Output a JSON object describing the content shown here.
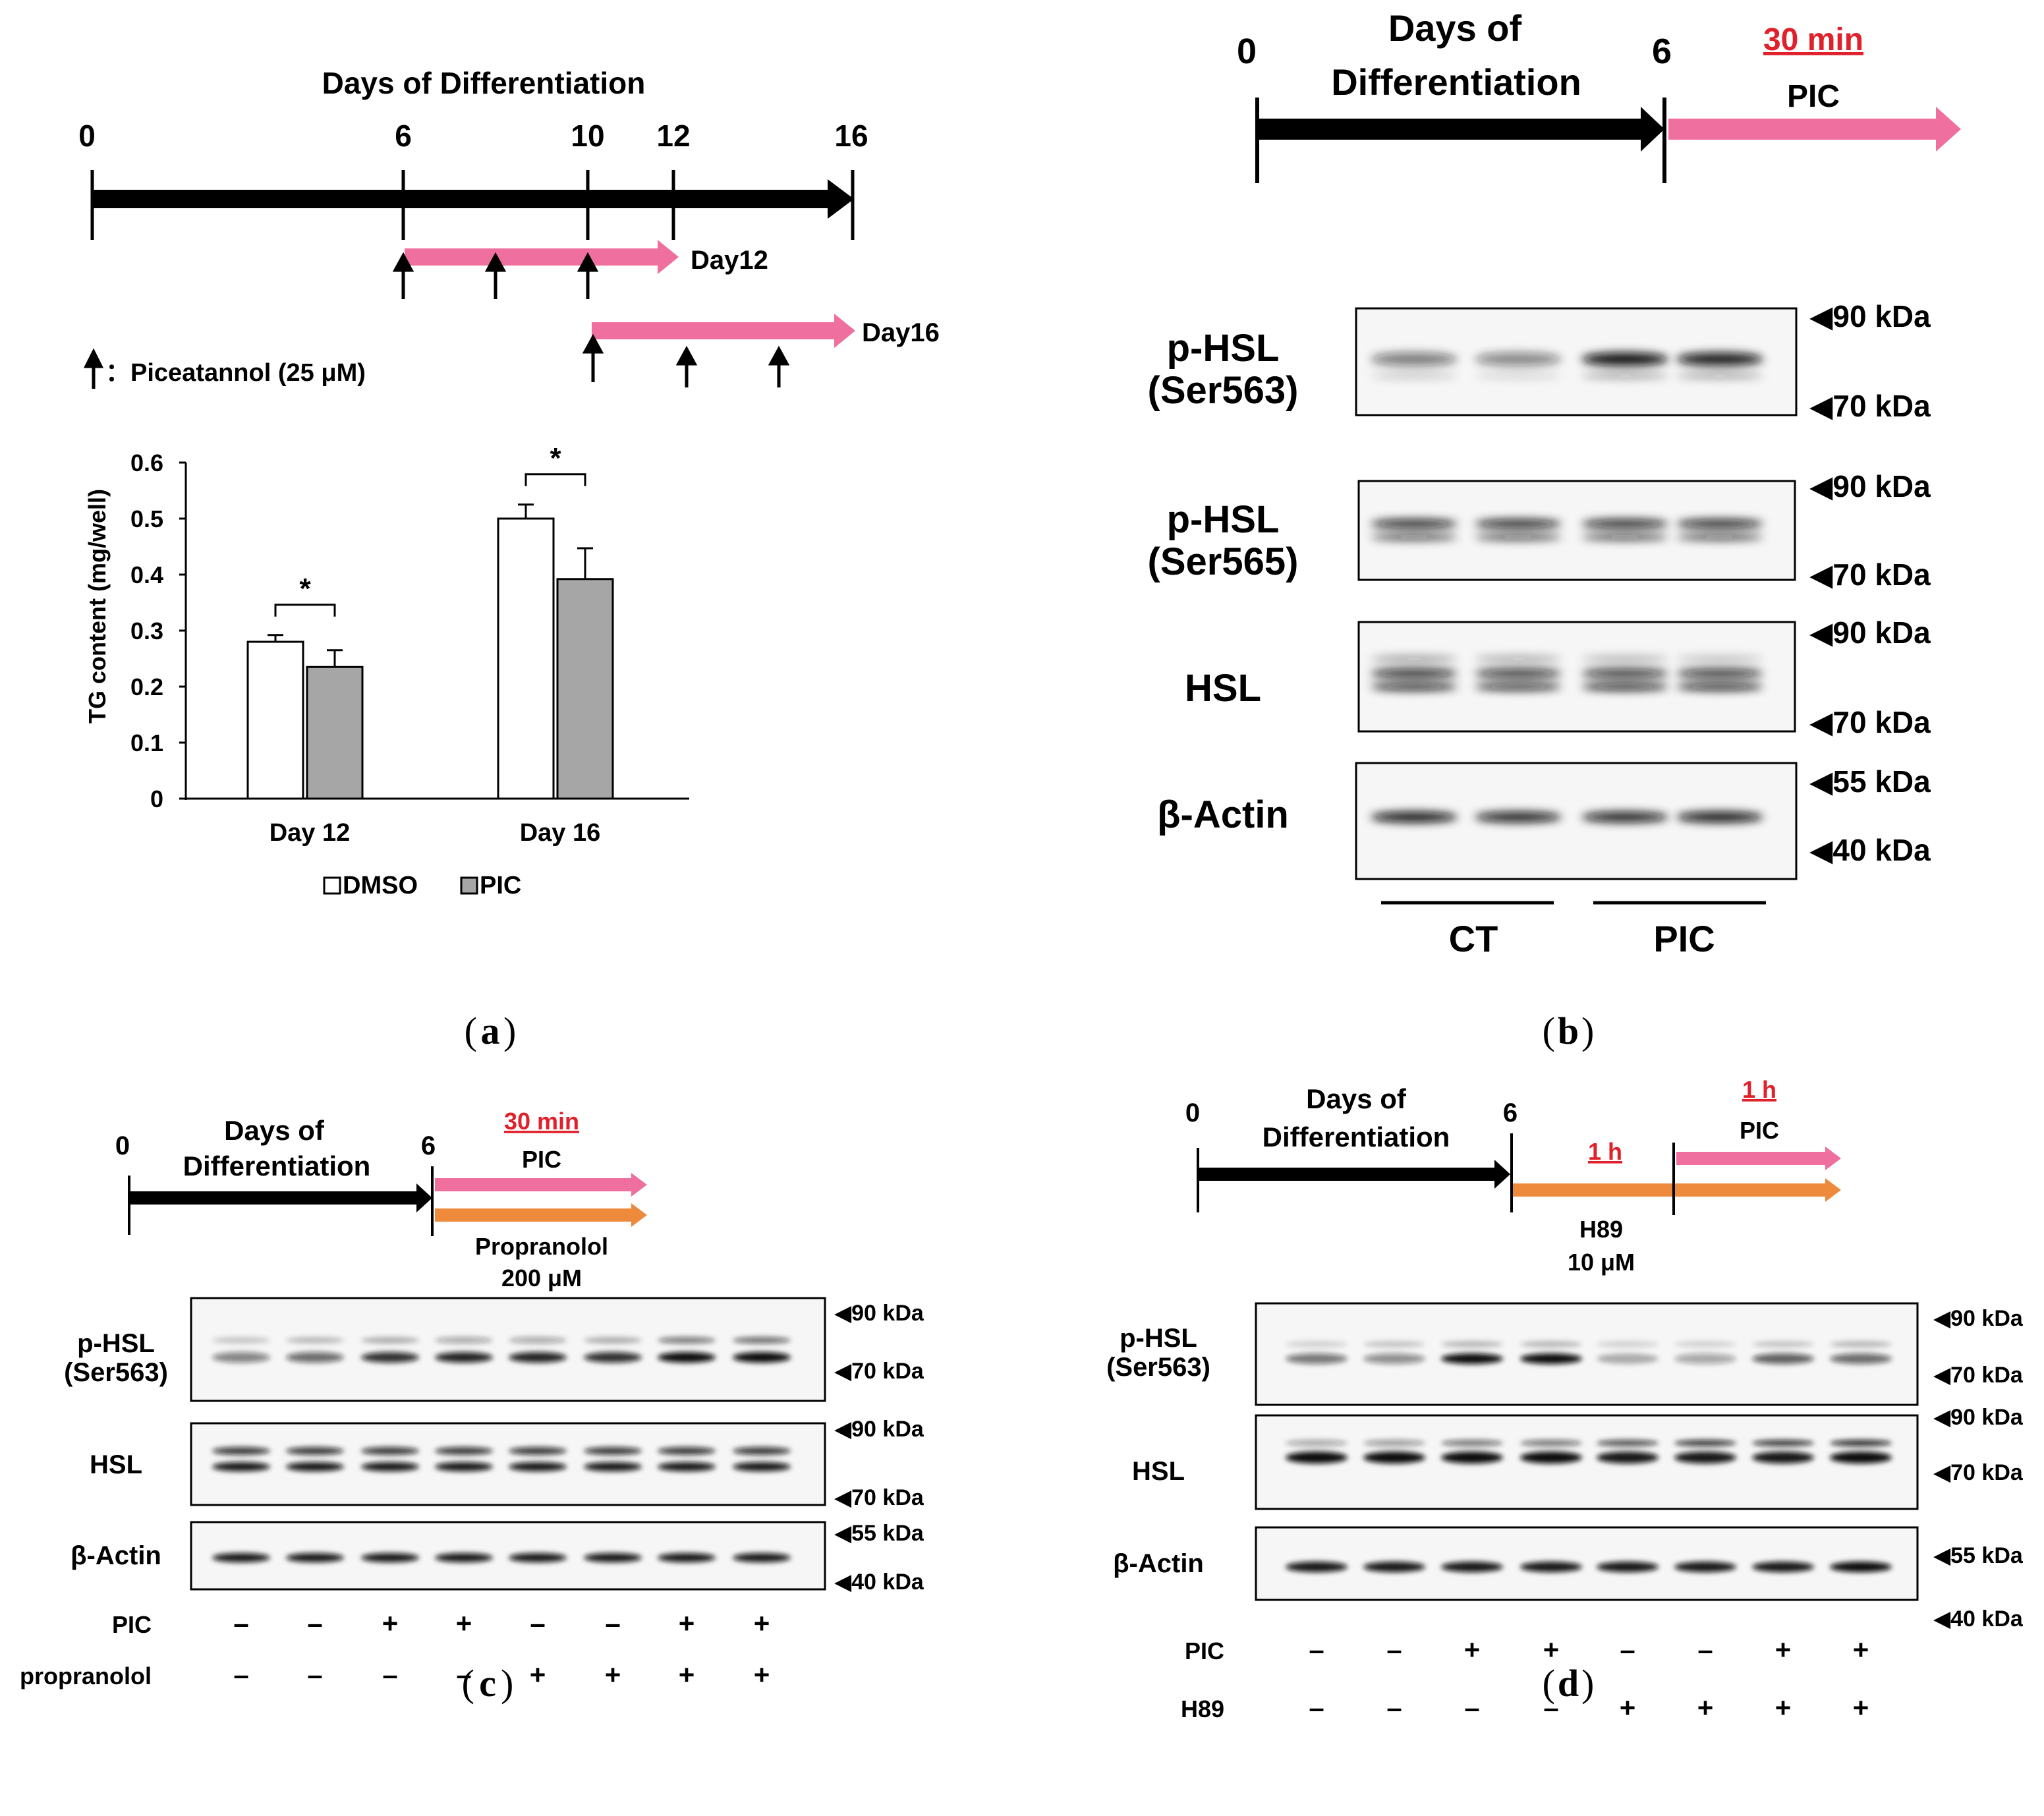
{
  "colors": {
    "pic": "#ef6f9e",
    "inhibitor": "#ee8a3c",
    "bar_dmso": "#ffffff",
    "bar_pic": "#a6a6a6",
    "band": "#111111",
    "timing": "#e0202a"
  },
  "panel_a": {
    "caption": "a",
    "timeline": {
      "title": "Days of Differentiation",
      "ticks": [
        "0",
        "6",
        "10",
        "12",
        "16"
      ],
      "arrow1_label": "Day12",
      "arrow2_label": "Day16",
      "legend_symbol": "↑",
      "legend_text": "：Piceatannol (25 μM)"
    },
    "chart_data": {
      "type": "bar",
      "categories": [
        "Day 12",
        "Day 16"
      ],
      "series": [
        {
          "name": "DMSO",
          "values": [
            0.28,
            0.5
          ],
          "errors": [
            0.012,
            0.025
          ]
        },
        {
          "name": "PIC",
          "values": [
            0.235,
            0.392
          ],
          "errors": [
            0.03,
            0.055
          ]
        }
      ],
      "ylabel": "TG content (mg/well)",
      "xlabel": "",
      "ylim": [
        0,
        0.6
      ],
      "yticks": [
        "0",
        "0.1",
        "0.2",
        "0.3",
        "0.4",
        "0.5",
        "0.6"
      ],
      "significance": [
        "*",
        "*"
      ],
      "legend_placement": "bottom"
    }
  },
  "panel_b": {
    "caption": "b",
    "timeline": {
      "start": "0",
      "title_line1": "Days of",
      "title_line2": "Differentiation",
      "day": "6",
      "duration": "30 min",
      "treatment": "PIC"
    },
    "blots": [
      {
        "label_line1": "p-HSL",
        "label_line2": "(Ser563)",
        "marker_top": "◀90 kDa",
        "marker_bottom": "◀70 kDa"
      },
      {
        "label_line1": "p-HSL",
        "label_line2": "(Ser565)",
        "marker_top": "◀90 kDa",
        "marker_bottom": "◀70 kDa"
      },
      {
        "label_line1": "HSL",
        "label_line2": "",
        "marker_top": "◀90 kDa",
        "marker_bottom": "◀70 kDa"
      },
      {
        "label_line1": "β-Actin",
        "label_line2": "",
        "marker_top": "◀55 kDa",
        "marker_bottom": "◀40 kDa"
      }
    ],
    "groups": [
      "CT",
      "PIC"
    ]
  },
  "panel_c": {
    "caption": "c",
    "timeline": {
      "start": "0",
      "title_line1": "Days of",
      "title_line2": "Differentiation",
      "day": "6",
      "duration": "30 min",
      "treatment1": "PIC",
      "treatment2_line1": "Propranolol",
      "treatment2_line2": "200 μM"
    },
    "blots": [
      {
        "label_line1": "p-HSL",
        "label_line2": "(Ser563)",
        "marker_top": "◀90 kDa",
        "marker_bottom": "◀70 kDa"
      },
      {
        "label_line1": "HSL",
        "label_line2": "",
        "marker_top": "◀90 kDa",
        "marker_bottom": "◀70 kDa"
      },
      {
        "label_line1": "β-Actin",
        "label_line2": "",
        "marker_top": "◀55 kDa",
        "marker_bottom": "◀40 kDa"
      }
    ],
    "rows": [
      {
        "label": "PIC",
        "signs": [
          "–",
          "–",
          "+",
          "+",
          "–",
          "–",
          "+",
          "+"
        ]
      },
      {
        "label": "propranolol",
        "signs": [
          "–",
          "–",
          "–",
          "–",
          "+",
          "+",
          "+",
          "+"
        ]
      }
    ]
  },
  "panel_d": {
    "caption": "d",
    "timeline": {
      "start": "0",
      "title_line1": "Days of",
      "title_line2": "Differentiation",
      "day": "6",
      "duration1": "1 h",
      "duration2": "1 h",
      "treatment1": "PIC",
      "treatment2_line1": "H89",
      "treatment2_line2": "10 μM"
    },
    "blots": [
      {
        "label_line1": "p-HSL",
        "label_line2": "(Ser563)",
        "marker_top": "◀90 kDa",
        "marker_bottom": "◀70 kDa"
      },
      {
        "label_line1": "HSL",
        "label_line2": "",
        "marker_top": "◀90 kDa",
        "marker_bottom": "◀70 kDa"
      },
      {
        "label_line1": "β-Actin",
        "label_line2": "",
        "marker_top": "◀55 kDa",
        "marker_bottom": "◀40 kDa"
      }
    ],
    "rows": [
      {
        "label": "PIC",
        "signs": [
          "–",
          "–",
          "+",
          "+",
          "–",
          "–",
          "+",
          "+"
        ]
      },
      {
        "label": "H89",
        "signs": [
          "–",
          "–",
          "–",
          "–",
          "+",
          "+",
          "+",
          "+"
        ]
      }
    ]
  }
}
